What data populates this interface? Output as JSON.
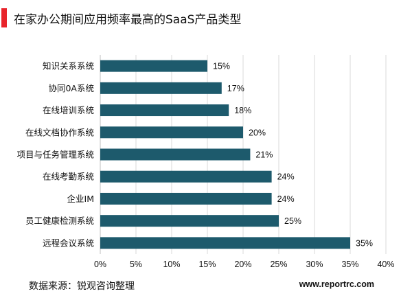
{
  "title": "在家办公期间应用频率最高的SaaS产品类型",
  "source": "数据来源：锐观咨询整理",
  "website": "www.reportrc.com",
  "colors": {
    "bar": "#1d5a6c",
    "accent": "#e8242b",
    "grid": "#d9d9d9"
  },
  "chart_data": {
    "type": "bar",
    "orientation": "horizontal",
    "title": "在家办公期间应用频率最高的SaaS产品类型",
    "categories": [
      "知识关系系统",
      "协同0A系统",
      "在线培训系统",
      "在线文档协作系统",
      "项目与任务管理系统",
      "在线考勤系统",
      "企业IM",
      "员工健康检测系统",
      "远程会议系统"
    ],
    "values": [
      15,
      17,
      18,
      20,
      21,
      24,
      24,
      25,
      35
    ],
    "value_labels": [
      "15%",
      "17%",
      "18%",
      "20%",
      "21%",
      "24%",
      "24%",
      "25%",
      "35%"
    ],
    "xlim": [
      0,
      40
    ],
    "x_ticks": [
      0,
      5,
      10,
      15,
      20,
      25,
      30,
      35,
      40
    ],
    "x_tick_labels": [
      "0%",
      "5%",
      "10%",
      "15%",
      "20%",
      "25%",
      "30%",
      "35%",
      "40%"
    ],
    "grid": true,
    "legend": "none"
  }
}
